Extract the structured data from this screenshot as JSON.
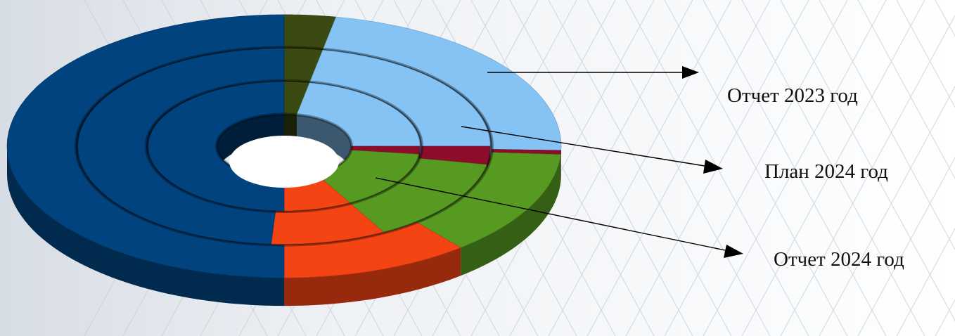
{
  "chart_data": {
    "type": "pie",
    "variant": "3d-multi-ring-donut",
    "title": "",
    "legend": "none",
    "rings": [
      {
        "name": "Отчет 2023 год",
        "position": "outer",
        "slices": [
          {
            "value": 3.0,
            "color": "#3b4a12"
          },
          {
            "value": 22.5,
            "color": "#85c3f5"
          },
          {
            "value": 0.5,
            "color": "#8b0d2a"
          },
          {
            "value": 13.0,
            "color": "#569a21"
          },
          {
            "value": 11.0,
            "color": "#f44414"
          },
          {
            "value": 50.0,
            "color": "#01437f"
          }
        ]
      },
      {
        "name": "План 2024 год",
        "position": "middle",
        "slices": [
          {
            "value": 3.0,
            "color": "#3b4a12"
          },
          {
            "value": 22.0,
            "color": "#85c3f5"
          },
          {
            "value": 3.0,
            "color": "#8b0d2a"
          },
          {
            "value": 14.0,
            "color": "#569a21"
          },
          {
            "value": 9.0,
            "color": "#f44414"
          },
          {
            "value": 49.0,
            "color": "#01437f"
          }
        ]
      },
      {
        "name": "Отчет 2024 год",
        "position": "inner",
        "slices": [
          {
            "value": 3.0,
            "color": "#3b4a12"
          },
          {
            "value": 22.0,
            "color": "#85c3f5"
          },
          {
            "value": 2.0,
            "color": "#8b0d2a"
          },
          {
            "value": 15.0,
            "color": "#569a21"
          },
          {
            "value": 8.0,
            "color": "#f44414"
          },
          {
            "value": 50.0,
            "color": "#01437f"
          }
        ]
      }
    ]
  },
  "labels": {
    "outer": "Отчет 2023 год",
    "middle": "План 2024 год",
    "inner": "Отчет 2024 год"
  }
}
